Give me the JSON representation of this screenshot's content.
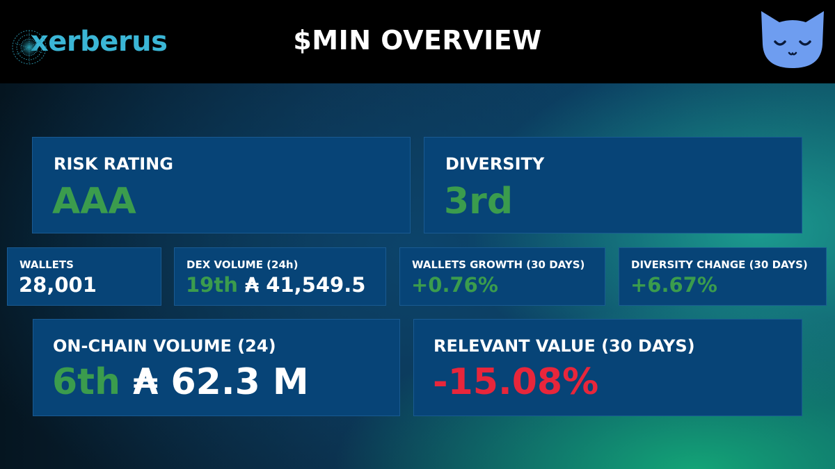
{
  "header": {
    "logo_text": "xerberus",
    "title": "$MIN OVERVIEW",
    "logo_icon": "xerberus-mesh-icon",
    "mascot_icon": "sleeping-cat-icon"
  },
  "cards": {
    "risk_rating": {
      "label": "RISK RATING",
      "value": "AAA"
    },
    "diversity": {
      "label": "DIVERSITY",
      "value": "3rd"
    },
    "wallets": {
      "label": "WALLETS",
      "value": "28,001"
    },
    "dex_volume": {
      "label": "DEX VOLUME (24h)",
      "rank": "19th",
      "currency": "₳",
      "amount": "41,549.5"
    },
    "wallets_growth": {
      "label": "WALLETS GROWTH (30 DAYS)",
      "value": "+0.76%"
    },
    "diversity_change": {
      "label": "DIVERSITY CHANGE (30 DAYS)",
      "value": "+6.67%"
    },
    "onchain_volume": {
      "label": "ON-CHAIN VOLUME (24)",
      "rank": "6th",
      "currency": "₳",
      "amount": "62.3 M"
    },
    "relevant_value": {
      "label": "RELEVANT VALUE (30 DAYS)",
      "value": "-15.08%"
    }
  },
  "colors": {
    "card_bg": "#074477",
    "positive": "#3b9c4d",
    "negative": "#e8263b",
    "brand": "#3bb6d6",
    "mascot": "#6e9df0"
  }
}
